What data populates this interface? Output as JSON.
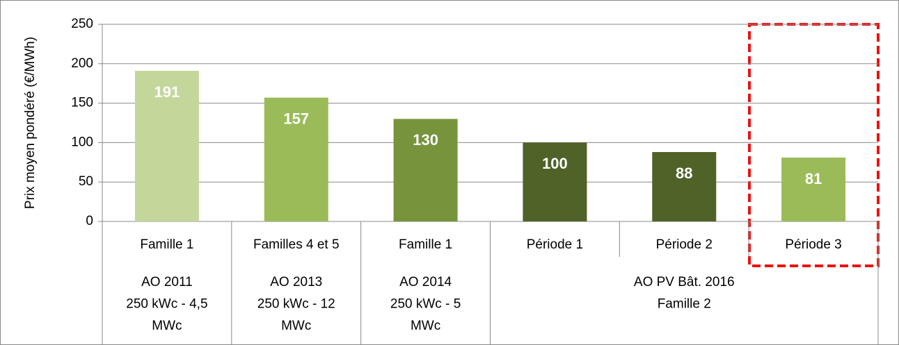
{
  "chart_data": {
    "type": "bar",
    "y_label": "Prix moyen pondéré (€/MWh)",
    "groups": [
      {
        "lines": [
          "AO 2011",
          "250 kWc - 4,5",
          "MWc"
        ],
        "categories": [
          "Famille 1"
        ]
      },
      {
        "lines": [
          "AO 2013",
          "250 kWc - 12",
          "MWc"
        ],
        "categories": [
          "Familles 4 et 5"
        ]
      },
      {
        "lines": [
          "AO 2014",
          "250 kWc - 5",
          "MWc"
        ],
        "categories": [
          "Famille 1"
        ]
      },
      {
        "lines": [
          "AO PV Bât. 2016",
          "Famille 2"
        ],
        "categories": [
          "Période 1",
          "Période 2",
          "Période 3"
        ]
      }
    ],
    "values": [
      191,
      157,
      130,
      100,
      88,
      81
    ],
    "colors": [
      "#c4d79b",
      "#9bbb59",
      "#77933c",
      "#4f6228",
      "#4f6228",
      "#9bbb59"
    ],
    "ylim": [
      0,
      250
    ],
    "yticks": [
      0,
      50,
      100,
      150,
      200,
      250
    ],
    "grid": true
  }
}
